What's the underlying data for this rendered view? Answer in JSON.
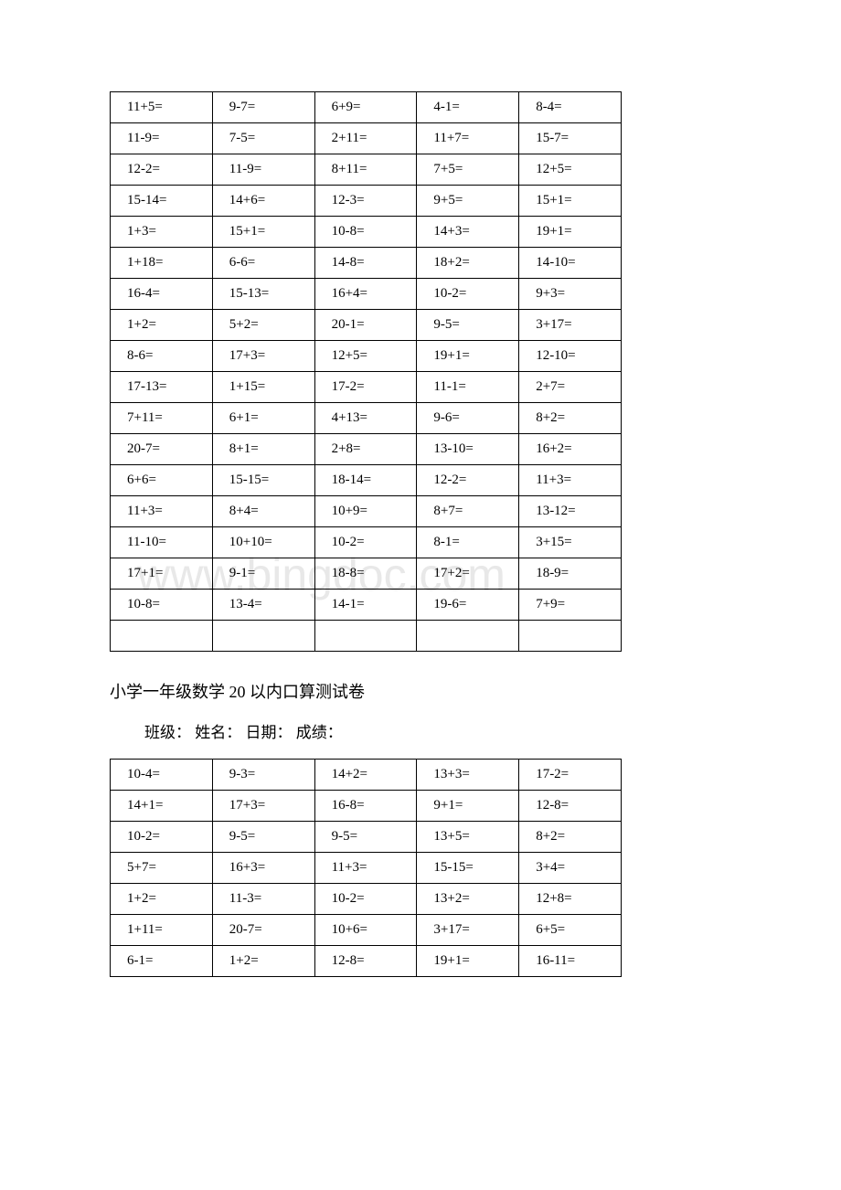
{
  "watermark": "www.bingdoc.com",
  "table1": {
    "columns": 5,
    "rows": [
      [
        "11+5=",
        "9-7=",
        "6+9=",
        "4-1=",
        "8-4="
      ],
      [
        "11-9=",
        "7-5=",
        "2+11=",
        "11+7=",
        "15-7="
      ],
      [
        "12-2=",
        "11-9=",
        "8+11=",
        "7+5=",
        "12+5="
      ],
      [
        "15-14=",
        "14+6=",
        "12-3=",
        "9+5=",
        "15+1="
      ],
      [
        "1+3=",
        "15+1=",
        "10-8=",
        "14+3=",
        "19+1="
      ],
      [
        "1+18=",
        "6-6=",
        "14-8=",
        "18+2=",
        "14-10="
      ],
      [
        "16-4=",
        "15-13=",
        "16+4=",
        "10-2=",
        "9+3="
      ],
      [
        "1+2=",
        "5+2=",
        "20-1=",
        "9-5=",
        "3+17="
      ],
      [
        "8-6=",
        "17+3=",
        "12+5=",
        "19+1=",
        "12-10="
      ],
      [
        "17-13=",
        "1+15=",
        "17-2=",
        "11-1=",
        "2+7="
      ],
      [
        "7+11=",
        "6+1=",
        "4+13=",
        "9-6=",
        "8+2="
      ],
      [
        "20-7=",
        "8+1=",
        "2+8=",
        "13-10=",
        "16+2="
      ],
      [
        "6+6=",
        "15-15=",
        "18-14=",
        "12-2=",
        "11+3="
      ],
      [
        "11+3=",
        "8+4=",
        "10+9=",
        "8+7=",
        "13-12="
      ],
      [
        "11-10=",
        "10+10=",
        "10-2=",
        "8-1=",
        "3+15="
      ],
      [
        "17+1=",
        "9-1=",
        "18-8=",
        "17+2=",
        "18-9="
      ],
      [
        "10-8=",
        "13-4=",
        "14-1=",
        "19-6=",
        "7+9="
      ],
      [
        "",
        "",
        "",
        "",
        ""
      ]
    ]
  },
  "title": "小学一年级数学 20 以内口算测试卷",
  "subtitle": "班级：  姓名：  日期：  成绩：",
  "table2": {
    "columns": 5,
    "rows": [
      [
        "10-4=",
        "9-3=",
        "14+2=",
        "13+3=",
        "17-2="
      ],
      [
        "14+1=",
        "17+3=",
        "16-8=",
        "9+1=",
        "12-8="
      ],
      [
        "10-2=",
        "9-5=",
        "9-5=",
        "13+5=",
        "8+2="
      ],
      [
        "5+7=",
        "16+3=",
        "11+3=",
        "15-15=",
        "3+4="
      ],
      [
        "1+2=",
        "11-3=",
        "10-2=",
        "13+2=",
        "12+8="
      ],
      [
        "1+11=",
        "20-7=",
        "10+6=",
        "3+17=",
        "6+5="
      ],
      [
        "6-1=",
        "1+2=",
        "12-8=",
        "19+1=",
        "16-11="
      ]
    ]
  }
}
